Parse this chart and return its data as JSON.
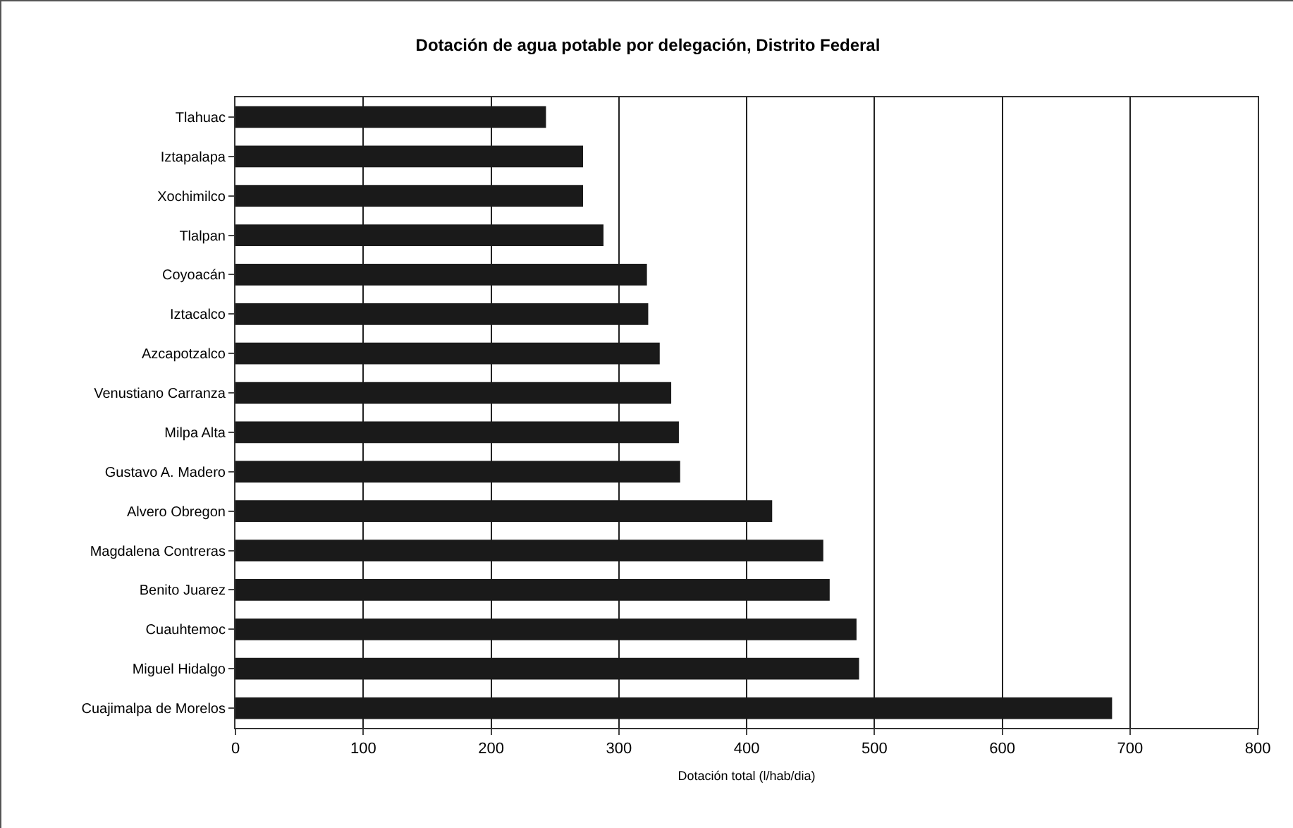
{
  "chart_data": {
    "type": "bar",
    "orientation": "horizontal",
    "title": "Dotación de agua potable por delegación, Distrito Federal",
    "xlabel": "Dotación total (l/hab/dia)",
    "categories": [
      "Tlahuac",
      "Iztapalapa",
      "Xochimilco",
      "Tlalpan",
      "Coyoacán",
      "Iztacalco",
      "Azcapotzalco",
      "Venustiano Carranza",
      "Milpa Alta",
      "Gustavo A. Madero",
      "Alvero Obregon",
      "Magdalena Contreras",
      "Benito Juarez",
      "Cuauhtemoc",
      "Miguel Hidalgo",
      "Cuajimalpa de Morelos"
    ],
    "values": [
      243,
      272,
      272,
      288,
      322,
      323,
      332,
      341,
      347,
      348,
      420,
      460,
      465,
      486,
      488,
      686
    ],
    "color": "#1a1a1a",
    "xlim": [
      0,
      800
    ],
    "xticks": [
      0,
      100,
      200,
      300,
      400,
      500,
      600,
      700,
      800
    ],
    "grid": "x"
  }
}
